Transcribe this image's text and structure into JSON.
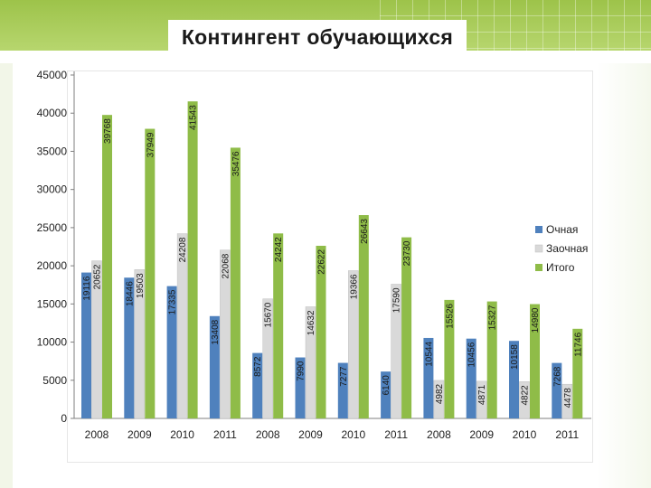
{
  "slide": {
    "title": "Контингент обучающихся"
  },
  "colors": {
    "banner": "#a8cb5a",
    "ochnaya": "#4f81bd",
    "zaochnaya": "#d9d9d9",
    "itogo": "#8fbc48"
  },
  "chart_data": {
    "type": "bar",
    "title": "",
    "xlabel": "",
    "ylabel": "",
    "ylim": [
      0,
      45000
    ],
    "yticks": [
      "0",
      "5000",
      "10000",
      "15000",
      "20000",
      "25000",
      "30000",
      "35000",
      "40000",
      "45000"
    ],
    "categories": [
      "2008",
      "2009",
      "2010",
      "2011",
      "2008",
      "2009",
      "2010",
      "2011",
      "2008",
      "2009",
      "2010",
      "2011"
    ],
    "legend_position": "right",
    "grid": false,
    "series": [
      {
        "name": "Очная",
        "color": "#4f81bd",
        "values": [
          19116,
          18446,
          17335,
          13408,
          8572,
          7990,
          7277,
          6140,
          10544,
          10456,
          10158,
          7268
        ]
      },
      {
        "name": "Заочная",
        "color": "#d9d9d9",
        "values": [
          20652,
          19503,
          24208,
          22068,
          15670,
          14632,
          19366,
          17590,
          4982,
          4871,
          4822,
          4478
        ]
      },
      {
        "name": "Итого",
        "color": "#8fbc48",
        "values": [
          39768,
          37949,
          41543,
          35476,
          24242,
          22622,
          26643,
          23730,
          15526,
          15327,
          14980,
          11746
        ]
      }
    ]
  }
}
